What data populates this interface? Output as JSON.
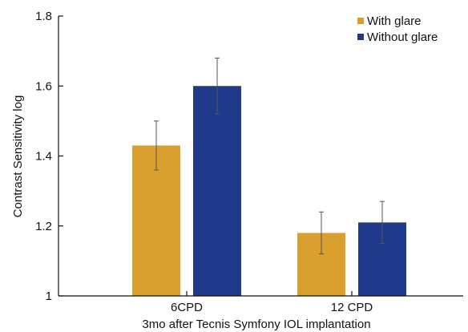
{
  "chart_data": {
    "type": "bar",
    "categories": [
      "6CPD",
      "12 CPD"
    ],
    "series": [
      {
        "name": "With glare",
        "values": [
          1.43,
          1.18
        ],
        "errors": [
          0.07,
          0.06
        ],
        "color": "#D9A030"
      },
      {
        "name": "Without glare",
        "values": [
          1.6,
          1.21
        ],
        "errors": [
          0.08,
          0.06
        ],
        "color": "#1F3A8A"
      }
    ],
    "xlabel": "3mo after Tecnis Symfony IOL implantation",
    "ylabel": "Contrast Sensitivity log",
    "ylim": [
      1,
      1.8
    ],
    "yticks": [
      "1",
      "1.2",
      "1.4",
      "1.6",
      "1.8"
    ],
    "yticks_values": [
      1,
      1.2,
      1.4,
      1.6,
      1.8
    ],
    "legend_position": "top-right",
    "grid": false,
    "error_bars": true
  }
}
